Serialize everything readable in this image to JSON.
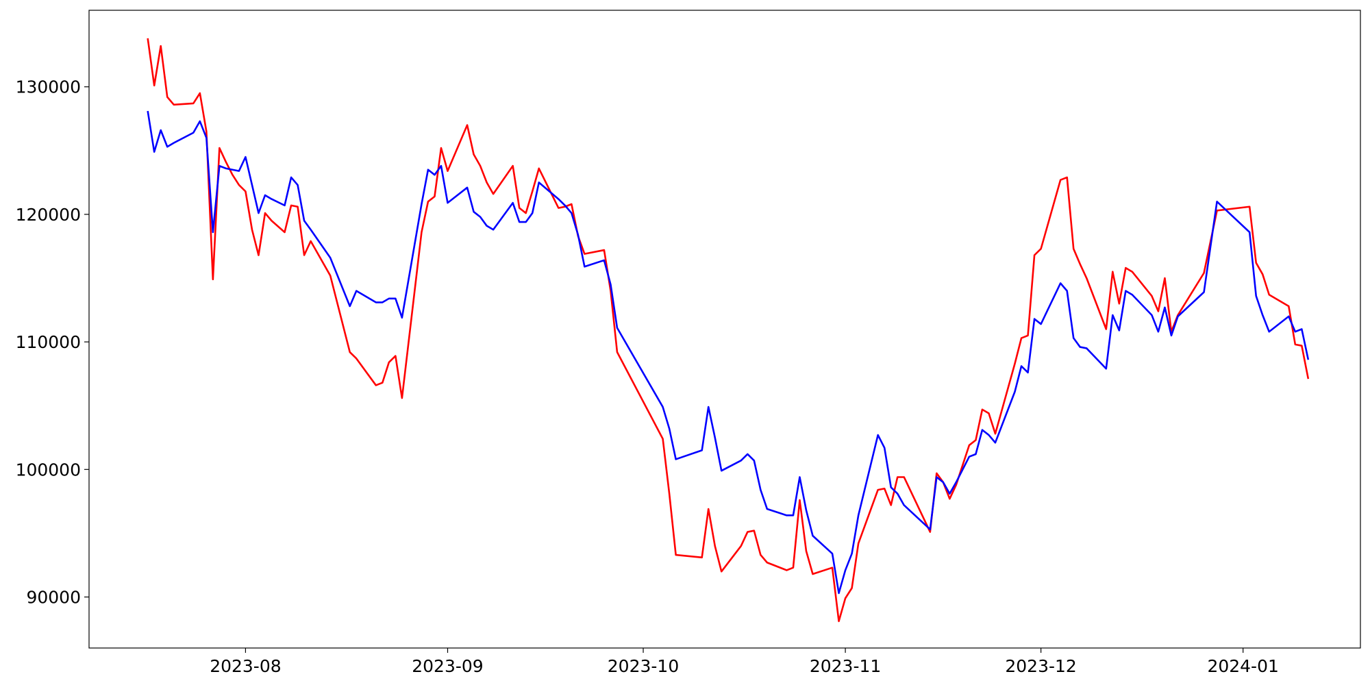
{
  "chart_data": {
    "type": "line",
    "x": [
      19555,
      19556,
      19557,
      19558,
      19559,
      19562,
      19563,
      19564,
      19565,
      19566,
      19567,
      19568,
      19569,
      19570,
      19571,
      19572,
      19573,
      19574,
      19576,
      19577,
      19578,
      19579,
      19580,
      19583,
      19586,
      19587,
      19590,
      19591,
      19592,
      19593,
      19594,
      19597,
      19598,
      19599,
      19600,
      19601,
      19604,
      19605,
      19606,
      19607,
      19608,
      19611,
      19612,
      19613,
      19614,
      19615,
      19618,
      19619,
      19620,
      19621,
      19622,
      19625,
      19626,
      19627,
      19634,
      19635,
      19636,
      19640,
      19641,
      19642,
      19643,
      19646,
      19647,
      19648,
      19649,
      19650,
      19653,
      19654,
      19655,
      19656,
      19657,
      19660,
      19661,
      19662,
      19663,
      19664,
      19667,
      19668,
      19669,
      19670,
      19671,
      19675,
      19676,
      19677,
      19678,
      19679,
      19681,
      19682,
      19683,
      19684,
      19685,
      19688,
      19689,
      19690,
      19691,
      19692,
      19695,
      19696,
      19697,
      19698,
      19699,
      19702,
      19703,
      19704,
      19705,
      19706,
      19709,
      19710,
      19711,
      19712,
      19713,
      19717,
      19719,
      19724,
      19725,
      19726,
      19727,
      19730,
      19731,
      19732,
      19733
    ],
    "series": [
      {
        "color": "#ff0000",
        "values": [
          133800,
          130100,
          133200,
          129200,
          128600,
          128700,
          129500,
          126500,
          114900,
          125200,
          124100,
          123100,
          122300,
          121800,
          118800,
          116800,
          120100,
          119500,
          118600,
          120700,
          120600,
          116800,
          117900,
          115200,
          109200,
          108700,
          106600,
          106800,
          108400,
          108900,
          105600,
          118600,
          121000,
          121400,
          125200,
          123400,
          127000,
          124700,
          123800,
          122500,
          121600,
          123800,
          120500,
          120100,
          121800,
          123600,
          120500,
          120600,
          120800,
          118300,
          116900,
          117200,
          114000,
          109200,
          102400,
          98100,
          93300,
          93100,
          96900,
          94000,
          92000,
          94000,
          95100,
          95200,
          93300,
          92700,
          92100,
          92300,
          97600,
          93600,
          91800,
          92300,
          88100,
          89900,
          90700,
          94200,
          98400,
          98500,
          97200,
          99400,
          99400,
          95100,
          99700,
          99000,
          97700,
          98800,
          101900,
          102300,
          104700,
          104400,
          102800,
          108300,
          110300,
          110500,
          116800,
          117300,
          122700,
          122900,
          117300,
          116100,
          115000,
          111000,
          115500,
          113000,
          115800,
          115500,
          113600,
          112400,
          115000,
          110800,
          112100,
          115400,
          120300,
          120600,
          116200,
          115300,
          113700,
          112800,
          109800,
          109700,
          107100
        ]
      },
      {
        "color": "#0000ff",
        "values": [
          128100,
          124900,
          126600,
          125300,
          125600,
          126400,
          127300,
          126000,
          118600,
          123800,
          123600,
          123500,
          123400,
          124500,
          122300,
          120100,
          121500,
          121200,
          120700,
          122900,
          122300,
          119500,
          118800,
          116600,
          112800,
          114000,
          113100,
          113100,
          113400,
          113400,
          111900,
          120800,
          123500,
          123100,
          123800,
          120900,
          122100,
          120200,
          119800,
          119100,
          118800,
          120900,
          119400,
          119400,
          120100,
          122500,
          121200,
          120700,
          120100,
          118400,
          115900,
          116400,
          114500,
          111100,
          104900,
          103200,
          100800,
          101500,
          104900,
          102500,
          99900,
          100700,
          101200,
          100700,
          98400,
          96900,
          96400,
          96400,
          99400,
          96800,
          94800,
          93400,
          90300,
          92100,
          93400,
          96400,
          102700,
          101700,
          98600,
          98100,
          97200,
          95300,
          99400,
          99000,
          98100,
          99000,
          101000,
          101200,
          103100,
          102700,
          102100,
          106100,
          108100,
          107600,
          111800,
          111400,
          114600,
          114000,
          110300,
          109600,
          109500,
          107900,
          112100,
          110900,
          114000,
          113700,
          112100,
          110800,
          112700,
          110500,
          112000,
          113900,
          121000,
          118600,
          113600,
          112100,
          110800,
          112000,
          110800,
          111000,
          108600
        ]
      }
    ],
    "xlim": [
      19546,
      19741
    ],
    "xticks": [
      {
        "value": 19570,
        "label": "2023-08"
      },
      {
        "value": 19601,
        "label": "2023-09"
      },
      {
        "value": 19631,
        "label": "2023-10"
      },
      {
        "value": 19662,
        "label": "2023-11"
      },
      {
        "value": 19692,
        "label": "2023-12"
      },
      {
        "value": 19723,
        "label": "2024-01"
      }
    ],
    "ylim": [
      86000,
      136000
    ],
    "yticks": [
      90000,
      100000,
      110000,
      120000,
      130000
    ],
    "grid": false
  }
}
